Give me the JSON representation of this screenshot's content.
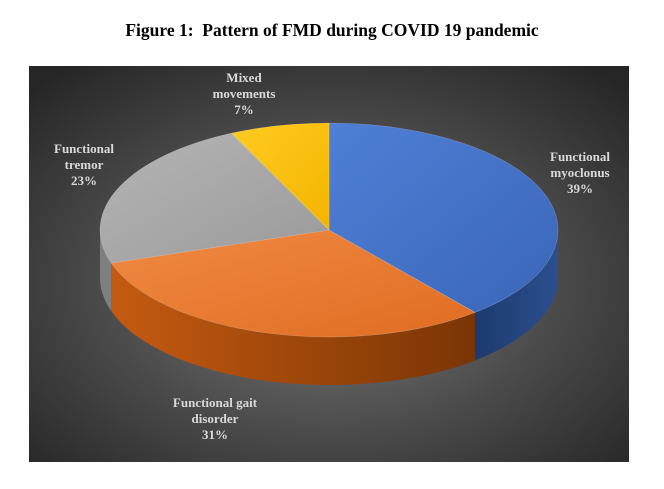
{
  "figure": {
    "title": "Figure 1:  Pattern of FMD during COVID 19 pandemic"
  },
  "chart_data": {
    "type": "pie",
    "style": "3d",
    "title": "Figure 1:  Pattern of FMD during COVID 19 pandemic",
    "legend": "none",
    "background": "dark radial gradient",
    "slices": [
      {
        "label_lines": [
          "Functional",
          "myoclonus"
        ],
        "value": 39,
        "value_label": "39%",
        "color": "#4472c4"
      },
      {
        "label_lines": [
          "Functional gait",
          "disorder"
        ],
        "value": 31,
        "value_label": "31%",
        "color": "#ed7d31"
      },
      {
        "label_lines": [
          "Functional",
          "tremor"
        ],
        "value": 23,
        "value_label": "23%",
        "color": "#a5a5a5"
      },
      {
        "label_lines": [
          "Mixed",
          "movements"
        ],
        "value": 7,
        "value_label": "7%",
        "color": "#ffc000"
      }
    ]
  }
}
